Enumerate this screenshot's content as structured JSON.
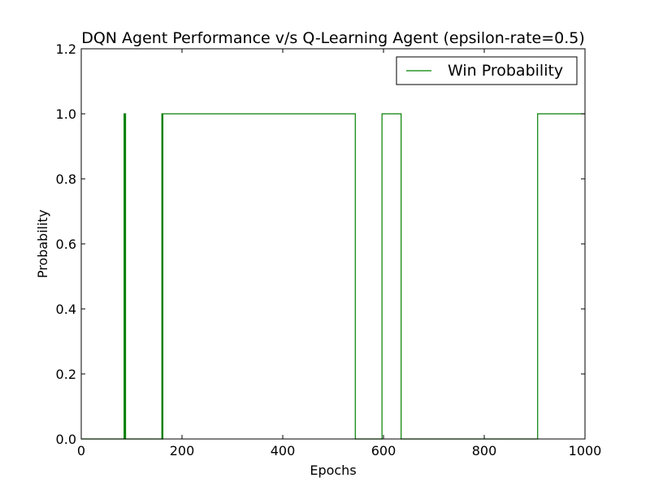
{
  "chart_data": {
    "type": "line",
    "title": "DQN Agent Performance v/s Q-Learning Agent (epsilon-rate=0.5)",
    "xlabel": "Epochs",
    "ylabel": "Probability",
    "xlim": [
      0,
      1000
    ],
    "ylim": [
      0,
      1.2
    ],
    "xticks": [
      0,
      200,
      400,
      600,
      800,
      1000
    ],
    "yticks": [
      0.0,
      0.2,
      0.4,
      0.6,
      0.8,
      1.0,
      1.2
    ],
    "xtick_labels": [
      "0",
      "200",
      "400",
      "600",
      "800",
      "1000"
    ],
    "ytick_labels": [
      "0.0",
      "0.2",
      "0.4",
      "0.6",
      "0.8",
      "1.0",
      "1.2"
    ],
    "grid": false,
    "legend": {
      "position": "top-right"
    },
    "series": [
      {
        "name": "Win Probability",
        "color": "#008000",
        "x": [
          0,
          85,
          85,
          86,
          86,
          87,
          87,
          88,
          88,
          160,
          160,
          161,
          161,
          162,
          162,
          163,
          163,
          544,
          544,
          597,
          597,
          635,
          635,
          906,
          906,
          1000
        ],
        "y": [
          0,
          0,
          1,
          1,
          0,
          0,
          1,
          1,
          0,
          0,
          1,
          1,
          0,
          0,
          1,
          1,
          1,
          1,
          0,
          0,
          1,
          1,
          0,
          0,
          1,
          1
        ]
      }
    ]
  }
}
